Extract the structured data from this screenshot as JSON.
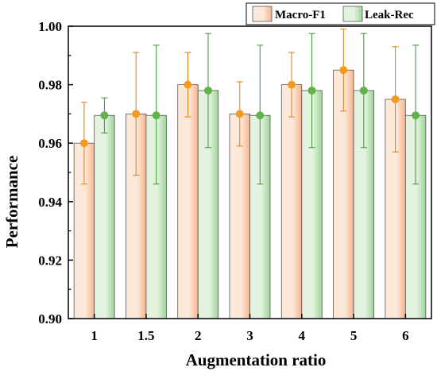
{
  "chart_data": {
    "type": "bar",
    "title": "",
    "xlabel": "Augmentation ratio",
    "ylabel": "Performance",
    "categories": [
      "1",
      "1.5",
      "2",
      "3",
      "4",
      "5",
      "6"
    ],
    "ylim": [
      0.9,
      1.0
    ],
    "yticks": [
      "0.90",
      "0.92",
      "0.94",
      "0.96",
      "0.98",
      "1.00"
    ],
    "grid": false,
    "legend_position": "top-right",
    "series": [
      {
        "name": "Macro-F1",
        "values": [
          0.96,
          0.97,
          0.98,
          0.97,
          0.98,
          0.985,
          0.975
        ],
        "err_low": [
          0.946,
          0.949,
          0.969,
          0.959,
          0.969,
          0.971,
          0.957
        ],
        "err_high": [
          0.974,
          0.991,
          0.991,
          0.981,
          0.991,
          0.999,
          0.993
        ],
        "bar_color_light": "#fde9d9",
        "bar_color_dark": "#f5b48c",
        "marker_color": "#f59a1e",
        "error_color": "#e07a10"
      },
      {
        "name": "Leak-Rec",
        "values": [
          0.9695,
          0.9695,
          0.978,
          0.9695,
          0.978,
          0.978,
          0.9695
        ],
        "err_low": [
          0.9635,
          0.946,
          0.9585,
          0.946,
          0.9585,
          0.9585,
          0.946
        ],
        "err_high": [
          0.9755,
          0.9935,
          0.9975,
          0.9935,
          0.9975,
          0.9975,
          0.9935
        ],
        "bar_color_light": "#e4f3e0",
        "bar_color_dark": "#9fd39a",
        "marker_color": "#62b24a",
        "error_color": "#3f8f3a"
      }
    ]
  }
}
